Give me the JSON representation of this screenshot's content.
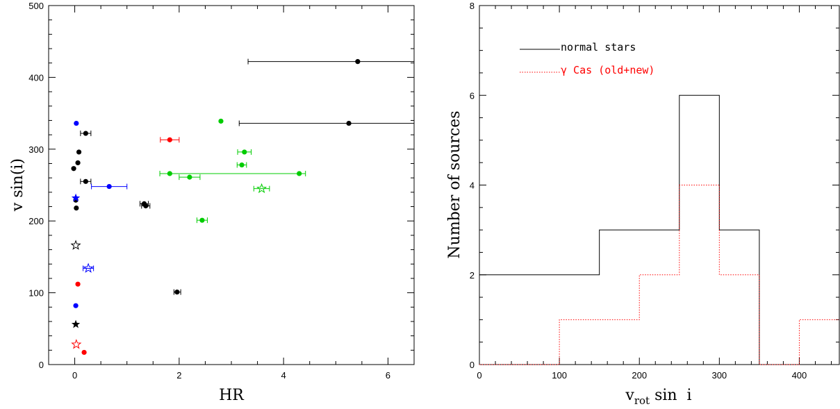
{
  "chart_data": [
    {
      "type": "scatter",
      "xlabel": "HR",
      "ylabel": "v sin(i)",
      "xlim": [
        -0.5,
        6.5
      ],
      "ylim": [
        0,
        500
      ],
      "xticks": [
        "0",
        "2",
        "4",
        "6"
      ],
      "yticks": [
        "0",
        "100",
        "200",
        "300",
        "400",
        "500"
      ],
      "grid": false,
      "series": [
        {
          "color": "#000000",
          "points": [
            {
              "x": 5.42,
              "y": 422,
              "xerr": [
                3.32,
                6.5
              ],
              "marker": "dot"
            },
            {
              "x": 5.25,
              "y": 336,
              "xerr": [
                3.15,
                6.5
              ],
              "marker": "dot"
            },
            {
              "x": 0.21,
              "y": 322,
              "xerr": [
                0.11,
                0.31
              ],
              "marker": "dot"
            },
            {
              "x": 0.08,
              "y": 296,
              "marker": "dot"
            },
            {
              "x": 0.06,
              "y": 281,
              "marker": "dot"
            },
            {
              "x": -0.02,
              "y": 273,
              "marker": "dot"
            },
            {
              "x": 0.21,
              "y": 255,
              "xerr": [
                0.11,
                0.31
              ],
              "marker": "dot"
            },
            {
              "x": 1.33,
              "y": 224,
              "xerr": [
                1.25,
                1.41
              ],
              "marker": "dot"
            },
            {
              "x": 1.36,
              "y": 221,
              "xerr": [
                1.28,
                1.44
              ],
              "marker": "dot"
            },
            {
              "x": 0.02,
              "y": 229,
              "marker": "dot"
            },
            {
              "x": 0.03,
              "y": 218,
              "marker": "dot"
            },
            {
              "x": 1.96,
              "y": 101,
              "xerr": [
                1.9,
                2.03
              ],
              "marker": "dot"
            },
            {
              "x": 0.02,
              "y": 166,
              "marker": "open-star"
            },
            {
              "x": 0.02,
              "y": 56,
              "marker": "star"
            }
          ]
        },
        {
          "color": "#0000ff",
          "points": [
            {
              "x": 0.03,
              "y": 336,
              "marker": "dot"
            },
            {
              "x": 0.66,
              "y": 248,
              "xerr": [
                0.32,
                1.0
              ],
              "marker": "dot"
            },
            {
              "x": 0.02,
              "y": 232,
              "marker": "star"
            },
            {
              "x": 0.26,
              "y": 134,
              "xerr": [
                0.16,
                0.36
              ],
              "marker": "open-star"
            },
            {
              "x": 0.02,
              "y": 82,
              "marker": "dot"
            }
          ]
        },
        {
          "color": "#ff0000",
          "points": [
            {
              "x": 1.82,
              "y": 313,
              "xerr": [
                1.64,
                2.0
              ],
              "marker": "dot"
            },
            {
              "x": 0.06,
              "y": 112,
              "marker": "dot"
            },
            {
              "x": 0.03,
              "y": 28,
              "marker": "open-star"
            },
            {
              "x": 0.18,
              "y": 17,
              "marker": "dot"
            }
          ]
        },
        {
          "color": "#00cc00",
          "points": [
            {
              "x": 2.8,
              "y": 339,
              "marker": "dot"
            },
            {
              "x": 3.25,
              "y": 296,
              "xerr": [
                3.12,
                3.38
              ],
              "marker": "dot"
            },
            {
              "x": 3.2,
              "y": 278,
              "xerr": [
                3.11,
                3.29
              ],
              "marker": "dot"
            },
            {
              "x": 1.82,
              "y": 266,
              "xerr": [
                1.63,
                4.42
              ],
              "marker": "dot"
            },
            {
              "x": 4.3,
              "y": 266,
              "marker": "dot"
            },
            {
              "x": 2.2,
              "y": 261,
              "xerr": [
                2.0,
                2.4
              ],
              "marker": "dot"
            },
            {
              "x": 3.58,
              "y": 245,
              "xerr": [
                3.43,
                3.73
              ],
              "marker": "open-star"
            },
            {
              "x": 2.44,
              "y": 201,
              "xerr": [
                2.34,
                2.54
              ],
              "marker": "dot"
            }
          ]
        }
      ]
    },
    {
      "type": "bar",
      "style": "histogram-step",
      "xlabel": "v",
      "xlabel_sub": "rot",
      "xlabel_rest": " sin  i",
      "ylabel": "Number of sources",
      "xlim": [
        0,
        450
      ],
      "ylim": [
        0,
        8
      ],
      "xticks": [
        "0",
        "100",
        "200",
        "300",
        "400"
      ],
      "yticks": [
        "0",
        "2",
        "4",
        "6",
        "8"
      ],
      "bin_edges": [
        0,
        50,
        100,
        150,
        200,
        250,
        300,
        350,
        400,
        450
      ],
      "series": [
        {
          "name": "normal stars",
          "color": "#000000",
          "line": "solid",
          "values": [
            2,
            2,
            2,
            3,
            3,
            6,
            3,
            0,
            0
          ]
        },
        {
          "name": "γ Cas (old+new)",
          "color": "#ff0000",
          "line": "dotted",
          "values": [
            0,
            0,
            1,
            1,
            2,
            4,
            2,
            0,
            1
          ]
        }
      ],
      "legend": "top-left"
    }
  ]
}
